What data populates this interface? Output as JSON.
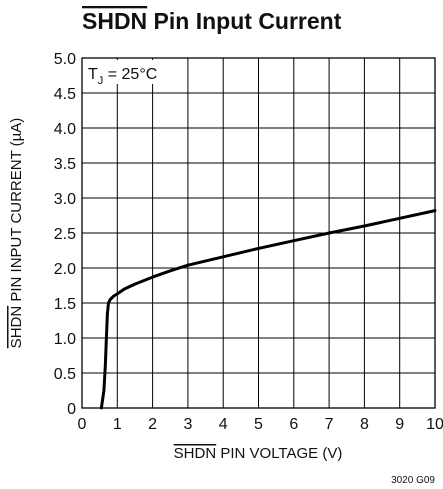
{
  "chart_data": {
    "type": "line",
    "title_overline": "SHDN",
    "title_rest": " Pin Input Current",
    "xlabel_overline": "SHDN",
    "xlabel_rest": " PIN VOLTAGE (V)",
    "ylabel_overline": "SHDN",
    "ylabel_rest": " PIN INPUT CURRENT (µA)",
    "annotation_prefix": "T",
    "annotation_sub": "J",
    "annotation_suffix": " = 25°C",
    "figure_id": "3020 G09",
    "xlim": [
      0,
      10
    ],
    "ylim": [
      0,
      5
    ],
    "x_ticks": [
      "0",
      "1",
      "2",
      "3",
      "4",
      "5",
      "6",
      "7",
      "8",
      "9",
      "10"
    ],
    "y_ticks": [
      "0",
      "0.5",
      "1.0",
      "1.5",
      "2.0",
      "2.5",
      "3.0",
      "3.5",
      "4.0",
      "4.5",
      "5.0"
    ],
    "grid": true,
    "series": [
      {
        "x": [
          0.55,
          0.62,
          0.66,
          0.69,
          0.72,
          0.75,
          0.8,
          0.9,
          1.0,
          1.2,
          1.5,
          2.0,
          2.5,
          3.0,
          4.0,
          5.0,
          6.0,
          7.0,
          8.0,
          9.0,
          10.0
        ],
        "y": [
          0.0,
          0.25,
          0.6,
          1.0,
          1.35,
          1.5,
          1.55,
          1.6,
          1.63,
          1.7,
          1.77,
          1.87,
          1.96,
          2.04,
          2.16,
          2.28,
          2.39,
          2.5,
          2.6,
          2.71,
          2.82
        ]
      }
    ]
  }
}
